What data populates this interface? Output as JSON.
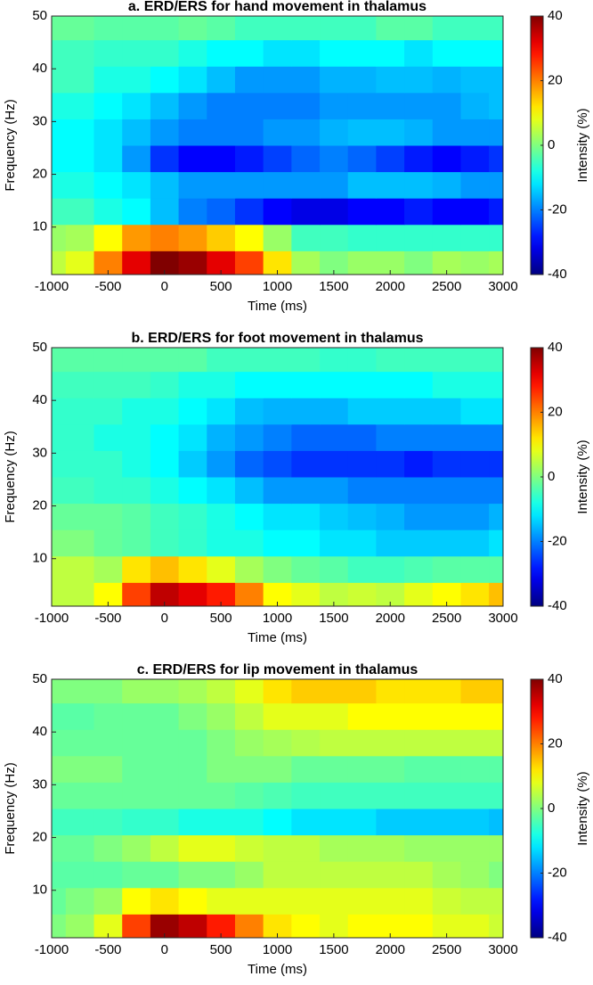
{
  "chart_data": [
    {
      "type": "heatmap",
      "title": "a. ERD/ERS for hand movement in thalamus",
      "x_label": "Time (ms)",
      "y_label": "Frequency (Hz)",
      "colorbar_label": "Intensity (%)",
      "x": [
        -1000,
        -750,
        -500,
        -250,
        0,
        250,
        500,
        750,
        1000,
        1250,
        1500,
        1750,
        2000,
        2250,
        2500,
        2750,
        3000
      ],
      "y": [
        3,
        8,
        13,
        18,
        23,
        28,
        33,
        38,
        43,
        48
      ],
      "z": [
        [
          5,
          8,
          20,
          32,
          40,
          38,
          32,
          25,
          12,
          3,
          0,
          2,
          2,
          0,
          3,
          2,
          3
        ],
        [
          2,
          3,
          10,
          18,
          20,
          18,
          14,
          10,
          2,
          -5,
          -5,
          -6,
          -6,
          -6,
          -6,
          -6,
          -6
        ],
        [
          -5,
          -5,
          -8,
          -10,
          -15,
          -20,
          -22,
          -26,
          -30,
          -32,
          -32,
          -30,
          -30,
          -28,
          -30,
          -30,
          -28
        ],
        [
          -8,
          -8,
          -10,
          -12,
          -15,
          -18,
          -18,
          -18,
          -18,
          -18,
          -18,
          -15,
          -15,
          -15,
          -16,
          -18,
          -18
        ],
        [
          -10,
          -10,
          -12,
          -18,
          -26,
          -30,
          -30,
          -28,
          -25,
          -22,
          -20,
          -22,
          -25,
          -28,
          -30,
          -28,
          -26
        ],
        [
          -10,
          -10,
          -12,
          -15,
          -18,
          -20,
          -20,
          -20,
          -18,
          -18,
          -16,
          -15,
          -15,
          -16,
          -18,
          -18,
          -18
        ],
        [
          -8,
          -8,
          -10,
          -12,
          -15,
          -18,
          -20,
          -20,
          -20,
          -20,
          -18,
          -18,
          -18,
          -18,
          -18,
          -16,
          -15
        ],
        [
          -5,
          -5,
          -8,
          -8,
          -10,
          -12,
          -15,
          -18,
          -18,
          -18,
          -16,
          -16,
          -15,
          -15,
          -16,
          -15,
          -15
        ],
        [
          -5,
          -5,
          -6,
          -6,
          -6,
          -8,
          -10,
          -10,
          -12,
          -12,
          -10,
          -10,
          -10,
          -12,
          -10,
          -10,
          -10
        ],
        [
          -2,
          -2,
          -3,
          -3,
          -3,
          -2,
          -3,
          -5,
          -5,
          -5,
          -5,
          -5,
          -3,
          -3,
          -5,
          -5,
          -5
        ]
      ],
      "xlim": [
        -1000,
        3000
      ],
      "ylim": [
        1,
        50
      ],
      "clim": [
        -40,
        40
      ],
      "xticks": [
        -1000,
        -500,
        0,
        500,
        1000,
        1500,
        2000,
        2500,
        3000
      ],
      "yticks": [
        10,
        20,
        30,
        40,
        50
      ],
      "cticks": [
        -40,
        -20,
        0,
        20,
        40
      ],
      "colormap": "jet"
    },
    {
      "type": "heatmap",
      "title": "b. ERD/ERS for foot movement in thalamus",
      "x_label": "Time (ms)",
      "y_label": "Frequency (Hz)",
      "colorbar_label": "Intensity (%)",
      "x": [
        -1000,
        -750,
        -500,
        -250,
        0,
        250,
        500,
        750,
        1000,
        1250,
        1500,
        1750,
        2000,
        2250,
        2500,
        2750,
        3000
      ],
      "y": [
        3,
        8,
        13,
        18,
        23,
        28,
        33,
        38,
        43,
        48
      ],
      "z": [
        [
          5,
          5,
          10,
          25,
          35,
          32,
          28,
          20,
          10,
          8,
          5,
          6,
          5,
          8,
          10,
          12,
          15
        ],
        [
          5,
          5,
          3,
          12,
          15,
          12,
          8,
          3,
          0,
          -2,
          -3,
          -5,
          -5,
          -4,
          -3,
          -3,
          -3
        ],
        [
          0,
          0,
          -2,
          -3,
          -5,
          -6,
          -8,
          -8,
          -10,
          -10,
          -12,
          -12,
          -14,
          -14,
          -14,
          -14,
          -12
        ],
        [
          -2,
          -2,
          -2,
          -3,
          -5,
          -6,
          -8,
          -10,
          -12,
          -12,
          -14,
          -15,
          -16,
          -18,
          -18,
          -18,
          -16
        ],
        [
          -5,
          -5,
          -6,
          -6,
          -8,
          -10,
          -12,
          -15,
          -18,
          -18,
          -18,
          -20,
          -20,
          -20,
          -20,
          -20,
          -20
        ],
        [
          -6,
          -6,
          -6,
          -8,
          -10,
          -14,
          -18,
          -22,
          -24,
          -26,
          -26,
          -26,
          -26,
          -28,
          -26,
          -26,
          -26
        ],
        [
          -6,
          -6,
          -8,
          -8,
          -10,
          -12,
          -16,
          -18,
          -20,
          -22,
          -22,
          -22,
          -20,
          -20,
          -20,
          -20,
          -20
        ],
        [
          -6,
          -6,
          -6,
          -8,
          -8,
          -10,
          -12,
          -15,
          -16,
          -16,
          -16,
          -14,
          -14,
          -14,
          -14,
          -12,
          -12
        ],
        [
          -5,
          -5,
          -5,
          -5,
          -6,
          -8,
          -8,
          -10,
          -10,
          -10,
          -10,
          -10,
          -10,
          -10,
          -8,
          -8,
          -8
        ],
        [
          -3,
          -3,
          -3,
          -3,
          -3,
          -3,
          -5,
          -5,
          -5,
          -5,
          -6,
          -6,
          -5,
          -5,
          -5,
          -5,
          -5
        ]
      ],
      "xlim": [
        -1000,
        3000
      ],
      "ylim": [
        1,
        50
      ],
      "clim": [
        -40,
        40
      ],
      "xticks": [
        -1000,
        -500,
        0,
        500,
        1000,
        1500,
        2000,
        2500,
        3000
      ],
      "yticks": [
        10,
        20,
        30,
        40,
        50
      ],
      "cticks": [
        -40,
        -20,
        0,
        20,
        40
      ],
      "colormap": "jet"
    },
    {
      "type": "heatmap",
      "title": "c. ERD/ERS for lip movement in thalamus",
      "x_label": "Time (ms)",
      "y_label": "Frequency (Hz)",
      "colorbar_label": "Intensity (%)",
      "x": [
        -1000,
        -750,
        -500,
        -250,
        0,
        250,
        500,
        750,
        1000,
        1250,
        1500,
        1750,
        2000,
        2250,
        2500,
        2750,
        3000
      ],
      "y": [
        3,
        8,
        13,
        18,
        23,
        28,
        33,
        38,
        43,
        48
      ],
      "z": [
        [
          0,
          2,
          8,
          25,
          38,
          35,
          28,
          20,
          12,
          10,
          8,
          10,
          10,
          10,
          8,
          8,
          6
        ],
        [
          -2,
          0,
          2,
          10,
          12,
          10,
          8,
          8,
          8,
          8,
          8,
          8,
          8,
          8,
          6,
          5,
          5
        ],
        [
          -3,
          -3,
          -3,
          -2,
          -2,
          0,
          0,
          2,
          5,
          5,
          5,
          5,
          5,
          5,
          3,
          2,
          0
        ],
        [
          -2,
          -2,
          0,
          2,
          5,
          8,
          8,
          6,
          5,
          5,
          3,
          3,
          3,
          2,
          2,
          2,
          2
        ],
        [
          -5,
          -5,
          -5,
          -6,
          -6,
          -8,
          -8,
          -8,
          -10,
          -12,
          -12,
          -12,
          -14,
          -14,
          -14,
          -14,
          -15
        ],
        [
          -2,
          -2,
          -2,
          -2,
          -2,
          -2,
          -2,
          -3,
          -4,
          -5,
          -5,
          -5,
          -5,
          -5,
          -5,
          -5,
          -5
        ],
        [
          0,
          0,
          0,
          -2,
          -2,
          -2,
          0,
          0,
          0,
          -2,
          -2,
          -2,
          -2,
          -3,
          -3,
          -3,
          -3
        ],
        [
          -2,
          -2,
          -2,
          -2,
          -2,
          -2,
          0,
          2,
          3,
          4,
          5,
          5,
          5,
          5,
          5,
          5,
          5
        ],
        [
          -3,
          -3,
          -2,
          -2,
          -2,
          0,
          2,
          5,
          8,
          8,
          8,
          10,
          10,
          10,
          10,
          10,
          10
        ],
        [
          0,
          0,
          0,
          2,
          2,
          3,
          5,
          8,
          12,
          14,
          14,
          14,
          12,
          12,
          12,
          14,
          14
        ]
      ],
      "xlim": [
        -1000,
        3000
      ],
      "ylim": [
        1,
        50
      ],
      "clim": [
        -40,
        40
      ],
      "xticks": [
        -1000,
        -500,
        0,
        500,
        1000,
        1500,
        2000,
        2500,
        3000
      ],
      "yticks": [
        10,
        20,
        30,
        40,
        50
      ],
      "cticks": [
        -40,
        -20,
        0,
        20,
        40
      ],
      "colormap": "jet"
    }
  ]
}
